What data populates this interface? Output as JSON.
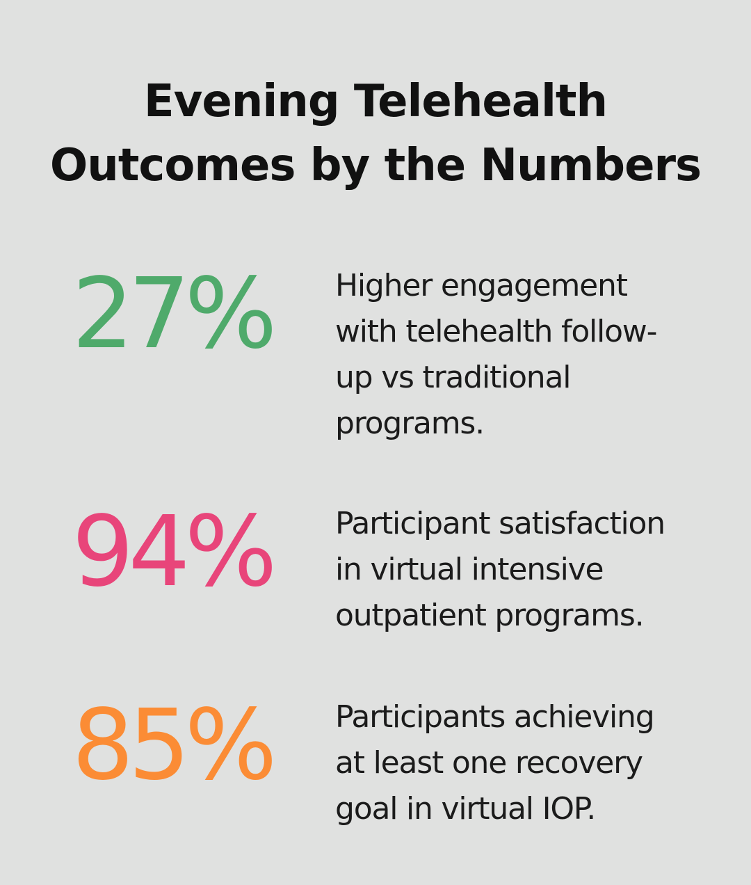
{
  "title": {
    "line1": "Evening Telehealth",
    "line2": "Outcomes by the Numbers"
  },
  "stats": [
    {
      "value": "27%",
      "color": "#4faa6b",
      "lines": [
        "Higher engagement",
        "with telehealth follow-",
        "up vs traditional",
        "programs."
      ]
    },
    {
      "value": "94%",
      "color": "#e8457a",
      "lines": [
        "Participant satisfaction",
        "in virtual intensive",
        "outpatient programs."
      ]
    },
    {
      "value": "85%",
      "color": "#fb8c35",
      "lines": [
        "Participants achieving",
        "at least one recovery",
        "goal in virtual IOP."
      ]
    }
  ]
}
